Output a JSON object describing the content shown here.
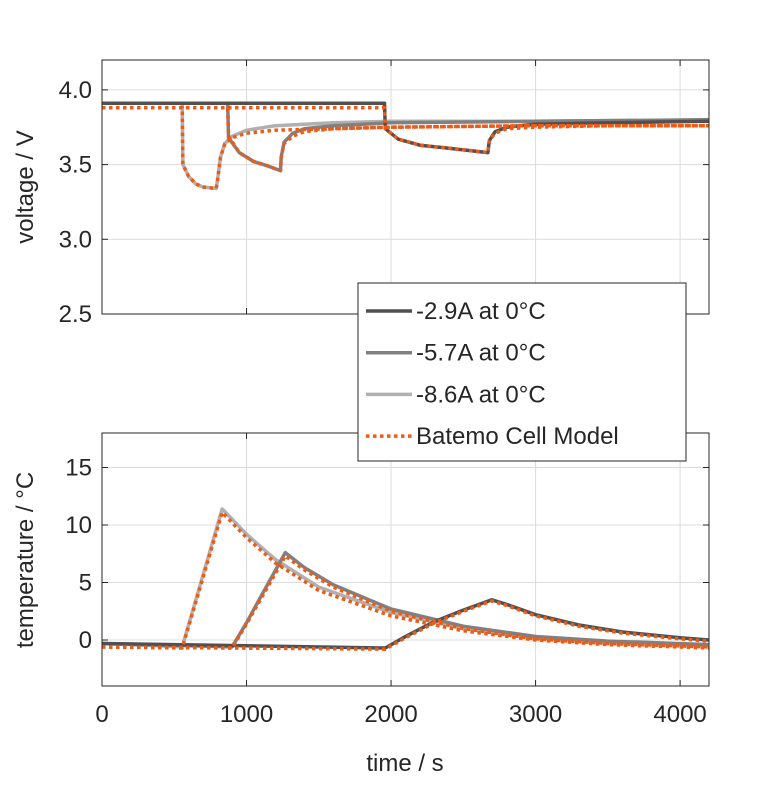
{
  "chart_data": [
    {
      "type": "line",
      "title": "",
      "xlabel": "",
      "ylabel": "voltage / V",
      "xlim": [
        0,
        4200
      ],
      "ylim": [
        2.5,
        4.2
      ],
      "xticks": [
        0,
        1000,
        2000,
        3000,
        4000
      ],
      "yticks": [
        2.5,
        3.0,
        3.5,
        4.0
      ],
      "ytick_labels": [
        "2.5",
        "3.0",
        "3.5",
        "4.0"
      ],
      "grid": true,
      "series": [
        {
          "name": "-8.6A at 0°C",
          "color": "#b0b0b0",
          "style": "solid",
          "points": [
            [
              0,
              3.91
            ],
            [
              555,
              3.91
            ],
            [
              560,
              3.5
            ],
            [
              600,
              3.42
            ],
            [
              650,
              3.37
            ],
            [
              700,
              3.35
            ],
            [
              790,
              3.34
            ],
            [
              800,
              3.4
            ],
            [
              820,
              3.55
            ],
            [
              850,
              3.64
            ],
            [
              900,
              3.69
            ],
            [
              1000,
              3.73
            ],
            [
              1200,
              3.76
            ],
            [
              1600,
              3.78
            ],
            [
              2000,
              3.79
            ],
            [
              3000,
              3.79
            ],
            [
              4200,
              3.8
            ]
          ]
        },
        {
          "name": "-5.7A at 0°C",
          "color": "#808080",
          "style": "solid",
          "points": [
            [
              0,
              3.91
            ],
            [
              870,
              3.91
            ],
            [
              875,
              3.68
            ],
            [
              950,
              3.58
            ],
            [
              1050,
              3.52
            ],
            [
              1150,
              3.49
            ],
            [
              1235,
              3.46
            ],
            [
              1240,
              3.55
            ],
            [
              1260,
              3.65
            ],
            [
              1320,
              3.71
            ],
            [
              1400,
              3.74
            ],
            [
              1600,
              3.76
            ],
            [
              2000,
              3.78
            ],
            [
              3000,
              3.79
            ],
            [
              4200,
              3.8
            ]
          ]
        },
        {
          "name": "-2.9A at 0°C",
          "color": "#505050",
          "style": "solid",
          "points": [
            [
              0,
              3.91
            ],
            [
              1955,
              3.91
            ],
            [
              1960,
              3.74
            ],
            [
              2050,
              3.67
            ],
            [
              2200,
              3.63
            ],
            [
              2400,
              3.61
            ],
            [
              2670,
              3.58
            ],
            [
              2680,
              3.66
            ],
            [
              2720,
              3.72
            ],
            [
              2800,
              3.75
            ],
            [
              3000,
              3.77
            ],
            [
              3500,
              3.78
            ],
            [
              4200,
              3.79
            ]
          ]
        },
        {
          "name": "Batemo Cell Model (-8.6A)",
          "color": "#f05a14",
          "style": "dotted",
          "points": [
            [
              0,
              3.88
            ],
            [
              555,
              3.88
            ],
            [
              560,
              3.5
            ],
            [
              600,
              3.42
            ],
            [
              650,
              3.37
            ],
            [
              700,
              3.35
            ],
            [
              790,
              3.34
            ],
            [
              800,
              3.4
            ],
            [
              820,
              3.55
            ],
            [
              850,
              3.64
            ],
            [
              900,
              3.68
            ],
            [
              1000,
              3.71
            ],
            [
              1200,
              3.73
            ],
            [
              1600,
              3.74
            ],
            [
              2000,
              3.75
            ],
            [
              3000,
              3.76
            ],
            [
              4200,
              3.76
            ]
          ]
        },
        {
          "name": "Batemo Cell Model (-5.7A)",
          "color": "#f05a14",
          "style": "dotted",
          "points": [
            [
              0,
              3.88
            ],
            [
              870,
              3.88
            ],
            [
              875,
              3.69
            ],
            [
              950,
              3.58
            ],
            [
              1050,
              3.52
            ],
            [
              1150,
              3.49
            ],
            [
              1235,
              3.46
            ],
            [
              1240,
              3.55
            ],
            [
              1260,
              3.64
            ],
            [
              1320,
              3.69
            ],
            [
              1400,
              3.72
            ],
            [
              1600,
              3.74
            ],
            [
              2000,
              3.75
            ],
            [
              3000,
              3.76
            ],
            [
              4200,
              3.76
            ]
          ]
        },
        {
          "name": "Batemo Cell Model (-2.9A)",
          "color": "#f05a14",
          "style": "dotted",
          "points": [
            [
              0,
              3.88
            ],
            [
              1955,
              3.88
            ],
            [
              1960,
              3.74
            ],
            [
              2050,
              3.67
            ],
            [
              2200,
              3.63
            ],
            [
              2400,
              3.61
            ],
            [
              2670,
              3.58
            ],
            [
              2680,
              3.66
            ],
            [
              2720,
              3.71
            ],
            [
              2800,
              3.74
            ],
            [
              3000,
              3.75
            ],
            [
              3500,
              3.76
            ],
            [
              4200,
              3.76
            ]
          ]
        }
      ]
    },
    {
      "type": "line",
      "title": "",
      "xlabel": "time / s",
      "ylabel": "temperature / °C",
      "xlim": [
        0,
        4200
      ],
      "ylim": [
        -4,
        18
      ],
      "xticks": [
        0,
        1000,
        2000,
        3000,
        4000
      ],
      "xtick_labels": [
        "0",
        "1000",
        "2000",
        "3000",
        "4000"
      ],
      "yticks": [
        0,
        5,
        10,
        15
      ],
      "ytick_labels": [
        "0",
        "5",
        "10",
        "15"
      ],
      "grid": true,
      "series": [
        {
          "name": "-8.6A at 0°C",
          "color": "#b0b0b0",
          "style": "solid",
          "points": [
            [
              0,
              -0.3
            ],
            [
              555,
              -0.6
            ],
            [
              832,
              11.4
            ],
            [
              1000,
              9.2
            ],
            [
              1200,
              7.0
            ],
            [
              1500,
              4.6
            ],
            [
              2000,
              2.4
            ],
            [
              2500,
              1.0
            ],
            [
              3000,
              0.2
            ],
            [
              3500,
              -0.2
            ],
            [
              4200,
              -0.5
            ]
          ]
        },
        {
          "name": "-5.7A at 0°C",
          "color": "#808080",
          "style": "solid",
          "points": [
            [
              0,
              -0.3
            ],
            [
              900,
              -0.6
            ],
            [
              1000,
              1.5
            ],
            [
              1100,
              3.8
            ],
            [
              1268,
              7.6
            ],
            [
              1400,
              6.3
            ],
            [
              1600,
              4.8
            ],
            [
              2000,
              2.7
            ],
            [
              2500,
              1.2
            ],
            [
              3000,
              0.3
            ],
            [
              3500,
              -0.1
            ],
            [
              4200,
              -0.4
            ]
          ]
        },
        {
          "name": "-2.9A at 0°C",
          "color": "#505050",
          "style": "solid",
          "points": [
            [
              0,
              -0.3
            ],
            [
              1960,
              -0.7
            ],
            [
              2100,
              0.3
            ],
            [
              2300,
              1.6
            ],
            [
              2500,
              2.6
            ],
            [
              2697,
              3.5
            ],
            [
              2800,
              3.1
            ],
            [
              3000,
              2.2
            ],
            [
              3300,
              1.3
            ],
            [
              3600,
              0.7
            ],
            [
              4000,
              0.2
            ],
            [
              4200,
              0.0
            ]
          ]
        },
        {
          "name": "Batemo Cell Model (-8.6A)",
          "color": "#f05a14",
          "style": "dotted",
          "points": [
            [
              0,
              -0.6
            ],
            [
              555,
              -0.7
            ],
            [
              832,
              11.1
            ],
            [
              1000,
              8.9
            ],
            [
              1200,
              6.7
            ],
            [
              1500,
              4.3
            ],
            [
              2000,
              2.1
            ],
            [
              2500,
              0.8
            ],
            [
              3000,
              0.0
            ],
            [
              3500,
              -0.4
            ],
            [
              4200,
              -0.7
            ]
          ]
        },
        {
          "name": "Batemo Cell Model (-5.7A)",
          "color": "#f05a14",
          "style": "dotted",
          "points": [
            [
              0,
              -0.6
            ],
            [
              900,
              -0.7
            ],
            [
              1000,
              1.4
            ],
            [
              1100,
              3.6
            ],
            [
              1268,
              7.3
            ],
            [
              1400,
              6.1
            ],
            [
              1600,
              4.6
            ],
            [
              2000,
              2.5
            ],
            [
              2500,
              1.0
            ],
            [
              3000,
              0.1
            ],
            [
              3500,
              -0.3
            ],
            [
              4200,
              -0.6
            ]
          ]
        },
        {
          "name": "Batemo Cell Model (-2.9A)",
          "color": "#f05a14",
          "style": "dotted",
          "points": [
            [
              0,
              -0.6
            ],
            [
              1960,
              -0.8
            ],
            [
              2100,
              0.2
            ],
            [
              2300,
              1.5
            ],
            [
              2500,
              2.5
            ],
            [
              2697,
              3.4
            ],
            [
              2800,
              3.0
            ],
            [
              3000,
              2.1
            ],
            [
              3300,
              1.2
            ],
            [
              3600,
              0.6
            ],
            [
              4000,
              0.1
            ],
            [
              4200,
              -0.1
            ]
          ]
        }
      ]
    }
  ],
  "legend": {
    "placement": "center-right",
    "entries": [
      {
        "label": "-2.9A at 0°C",
        "color": "#505050",
        "style": "solid"
      },
      {
        "label": "-5.7A at 0°C",
        "color": "#808080",
        "style": "solid"
      },
      {
        "label": "-8.6A at 0°C",
        "color": "#b0b0b0",
        "style": "solid"
      },
      {
        "label": "Batemo Cell Model",
        "color": "#f05a14",
        "style": "dotted"
      }
    ]
  }
}
